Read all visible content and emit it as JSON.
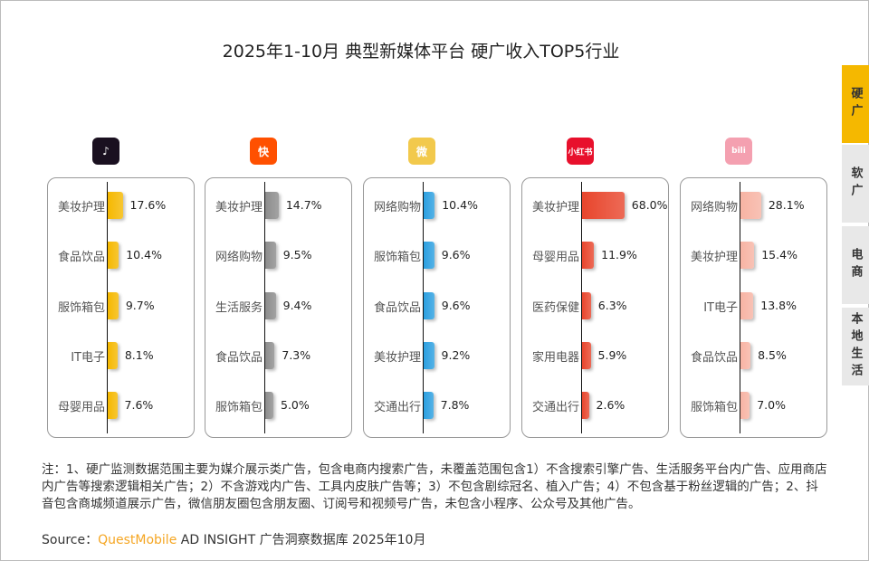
{
  "title": "2025年1-10月 典型新媒体平台 硬广收入TOP5行业",
  "tabs": [
    {
      "label": "硬广",
      "active": true
    },
    {
      "label": "软广",
      "active": false
    },
    {
      "label": "电商",
      "active": false
    },
    {
      "label": "本地生活",
      "active": false
    }
  ],
  "chart_data": [
    {
      "type": "bar",
      "platform": "douyin",
      "logo": "♪",
      "color": "#f5b800",
      "categories": [
        "美妆护理",
        "食品饮品",
        "服饰箱包",
        "IT电子",
        "母婴用品"
      ],
      "values": [
        17.6,
        10.4,
        9.7,
        8.1,
        7.6
      ],
      "labels": [
        "17.6%",
        "10.4%",
        "9.7%",
        "8.1%",
        "7.6%"
      ]
    },
    {
      "type": "bar",
      "platform": "kuaishou",
      "logo": "快",
      "color": "#8c8c8c",
      "categories": [
        "美妆护理",
        "网络购物",
        "生活服务",
        "食品饮品",
        "服饰箱包"
      ],
      "values": [
        14.7,
        9.5,
        9.4,
        7.3,
        5.0
      ],
      "labels": [
        "14.7%",
        "9.5%",
        "9.4%",
        "7.3%",
        "5.0%"
      ]
    },
    {
      "type": "bar",
      "platform": "weibo",
      "logo": "微",
      "color": "#2b9fe0",
      "categories": [
        "网络购物",
        "服饰箱包",
        "食品饮品",
        "美妆护理",
        "交通出行"
      ],
      "values": [
        10.4,
        9.6,
        9.6,
        9.2,
        7.8
      ],
      "labels": [
        "10.4%",
        "9.6%",
        "9.6%",
        "9.2%",
        "7.8%"
      ]
    },
    {
      "type": "bar",
      "platform": "xiaohongshu",
      "logo": "小红书",
      "color": "#e8452c",
      "categories": [
        "美妆护理",
        "母婴用品",
        "医药保健",
        "家用电器",
        "交通出行"
      ],
      "values": [
        68.0,
        11.9,
        6.3,
        5.9,
        2.6
      ],
      "labels": [
        "68.0%",
        "11.9%",
        "6.3%",
        "5.9%",
        "2.6%"
      ]
    },
    {
      "type": "bar",
      "platform": "bilibili",
      "logo": "bili",
      "color": "#f7b3a3",
      "categories": [
        "网络购物",
        "美妆护理",
        "IT电子",
        "食品饮品",
        "服饰箱包"
      ],
      "values": [
        28.1,
        15.4,
        13.8,
        8.5,
        7.0
      ],
      "labels": [
        "28.1%",
        "15.4%",
        "13.8%",
        "8.5%",
        "7.0%"
      ]
    }
  ],
  "logo_colors": [
    "#1a1020",
    "#ff5000",
    "#f2c94c",
    "#e8102c",
    "#f4a0b0"
  ],
  "note": "注：1、硬广监测数据范围主要为媒介展示类广告，包含电商内搜索广告，未覆盖范围包含1）不含搜索引擎广告、生活服务平台内广告、应用商店内广告等搜索逻辑相关广告；2）不含游戏内广告、工具内皮肤广告等；3）不包含剧综冠名、植入广告；4）不包含基于粉丝逻辑的广告；2、抖音包含商城频道展示广告，微信朋友圈包含朋友圈、订阅号和视频号广告，未包含小程序、公众号及其他广告。",
  "source": {
    "prefix": "Source：",
    "brand": "QuestMobile",
    "suffix": " AD INSIGHT 广告洞察数据库 2025年10月"
  }
}
